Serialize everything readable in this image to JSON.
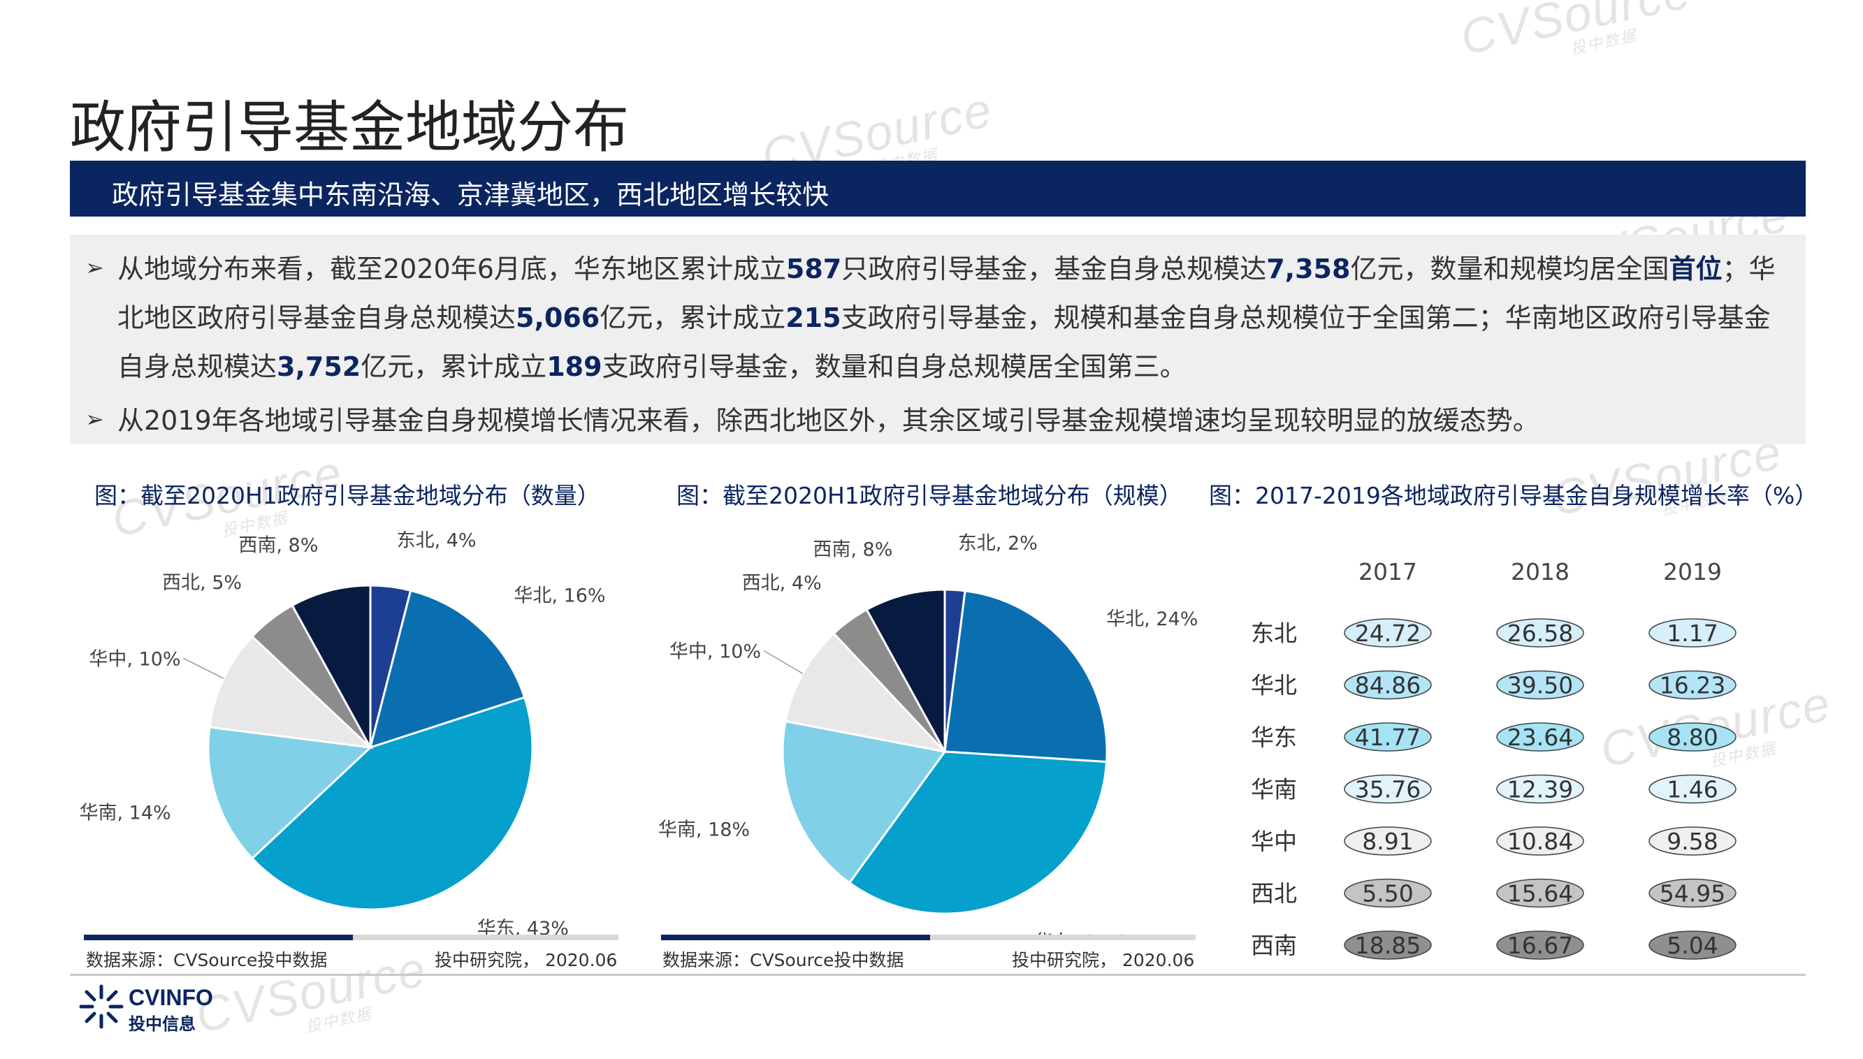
{
  "header": {
    "title": "政府引导基金地域分布",
    "banner": "政府引导基金集中东南沿海、京津冀地区，西北地区增长较快"
  },
  "summary": {
    "p1": {
      "t1": "从地域分布来看，截至2020年6月底，华东地区累计成立",
      "v1": "587",
      "t2": "只政府引导基金，基金自身总规模达",
      "v2": "7,358",
      "t3": "亿元，数量和规模均居全国",
      "v3": "首位",
      "t4": "；华北地区政府引导基金自身总规模达",
      "v4": "5,066",
      "t5": "亿元，累计成立",
      "v5": "215",
      "t6": "支政府引导基金，规模和基金自身总规模位于全国第二；华南地区政府引导基金自身总规模达",
      "v6": "3,752",
      "t7": "亿元，累计成立",
      "v7": "189",
      "t8": "支政府引导基金，数量和自身总规模居全国第三。"
    },
    "p2": "从2019年各地域引导基金自身规模增长情况来看，除西北地区外，其余区域引导基金规模增速均呈现较明显的放缓态势。"
  },
  "footer_sources": {
    "left_source": "数据来源：CVSource投中数据",
    "left_org": "投中研究院， 2020.06",
    "mid_source": "数据来源：CVSource投中数据",
    "mid_org": "投中研究院， 2020.06"
  },
  "logo": {
    "name": "CVINFO",
    "sub": "投中信息"
  },
  "watermark": {
    "text": "CVSource",
    "sub": "投中数据"
  },
  "chart_data": [
    {
      "type": "pie",
      "title": "图：截至2020H1政府引导基金地域分布（数量）",
      "slices": [
        {
          "name": "东北",
          "value": 4,
          "color": "#1c3f94"
        },
        {
          "name": "华北",
          "value": 16,
          "color": "#0a6fb0"
        },
        {
          "name": "华东",
          "value": 43,
          "color": "#06a0cc"
        },
        {
          "name": "华南",
          "value": 14,
          "color": "#80d0e8"
        },
        {
          "name": "华中",
          "value": 10,
          "color": "#e8e8e8"
        },
        {
          "name": "西北",
          "value": 5,
          "color": "#8c8c8c"
        },
        {
          "name": "西南",
          "value": 8,
          "color": "#071a40"
        }
      ],
      "labels": [
        "东北, 4%",
        "华北, 16%",
        "华东, 43%",
        "华南, 14%",
        "华中, 10%",
        "西北, 5%",
        "西南, 8%"
      ]
    },
    {
      "type": "pie",
      "title": "图：截至2020H1政府引导基金地域分布（规模）",
      "slices": [
        {
          "name": "东北",
          "value": 2,
          "color": "#1c3f94"
        },
        {
          "name": "华北",
          "value": 24,
          "color": "#0a6fb0"
        },
        {
          "name": "华东",
          "value": 34,
          "color": "#06a0cc"
        },
        {
          "name": "华南",
          "value": 18,
          "color": "#80d0e8"
        },
        {
          "name": "华中",
          "value": 10,
          "color": "#e8e8e8"
        },
        {
          "name": "西北",
          "value": 4,
          "color": "#8c8c8c"
        },
        {
          "name": "西南",
          "value": 8,
          "color": "#071a40"
        }
      ],
      "labels": [
        "东北, 2%",
        "华北, 24%",
        "华东, 34%",
        "华南, 18%",
        "华中, 10%",
        "西北, 4%",
        "西南, 8%"
      ]
    },
    {
      "type": "table",
      "title": "图：2017-2019各地域政府引导基金自身规模增长率（%）",
      "columns": [
        "2017",
        "2018",
        "2019"
      ],
      "rows": [
        {
          "region": "东北",
          "values": [
            "24.72",
            "26.58",
            "1.17"
          ],
          "fill": "#d6effa"
        },
        {
          "region": "华北",
          "values": [
            "84.86",
            "39.50",
            "16.23"
          ],
          "fill": "#b3e5f7"
        },
        {
          "region": "华东",
          "values": [
            "41.77",
            "23.64",
            "8.80"
          ],
          "fill": "#a5e3f5"
        },
        {
          "region": "华南",
          "values": [
            "35.76",
            "12.39",
            "1.46"
          ],
          "fill": "#e2f4fb"
        },
        {
          "region": "华中",
          "values": [
            "8.91",
            "10.84",
            "9.58"
          ],
          "fill": "#efefef"
        },
        {
          "region": "西北",
          "values": [
            "5.50",
            "15.64",
            "54.95"
          ],
          "fill": "#c4c4c4"
        },
        {
          "region": "西南",
          "values": [
            "18.85",
            "16.67",
            "5.04"
          ],
          "fill": "#8f8f8f"
        }
      ]
    }
  ]
}
